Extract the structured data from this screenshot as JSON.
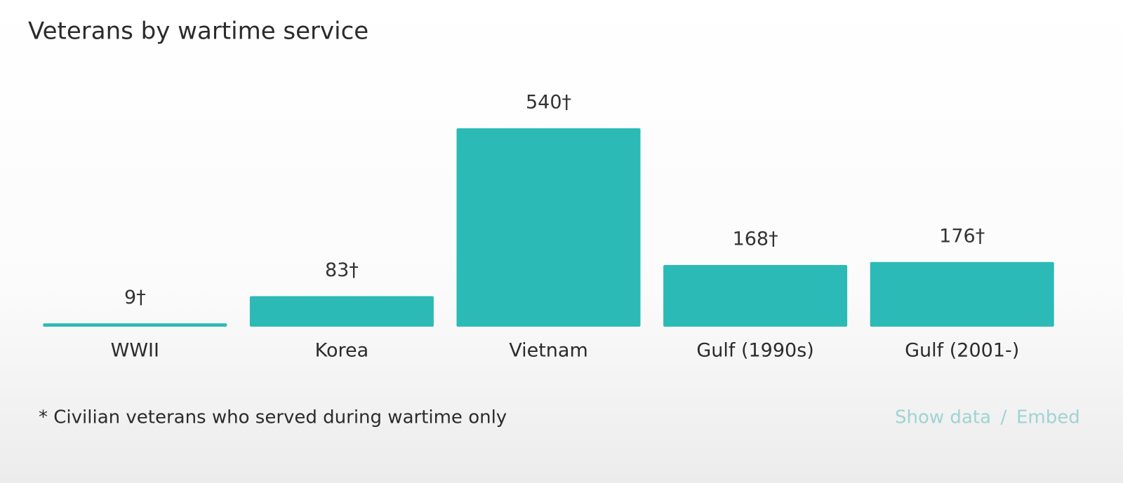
{
  "chart_data": {
    "type": "bar",
    "title": "Veterans by wartime service",
    "categories": [
      "WWII",
      "Korea",
      "Vietnam",
      "Gulf (1990s)",
      "Gulf (2001-)"
    ],
    "values": [
      9,
      83,
      540,
      168,
      176
    ],
    "value_labels": [
      "9†",
      "83†",
      "540†",
      "168†",
      "176†"
    ],
    "color": "#2cbab6",
    "footnote": "* Civilian veterans who served during wartime only",
    "links": [
      "Show data",
      "Embed"
    ],
    "link_separator": "/"
  }
}
